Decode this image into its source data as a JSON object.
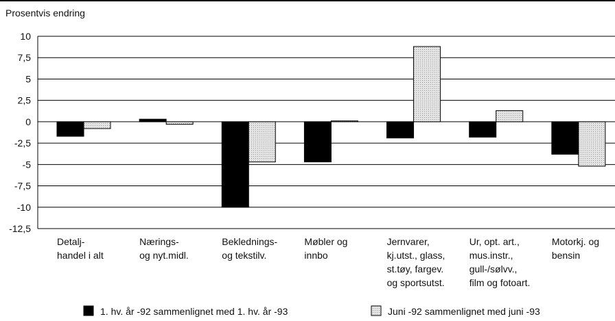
{
  "chart_data": {
    "type": "bar",
    "title": "Prosentvis endring",
    "categories": [
      "Detalj-\nhandel i alt",
      "Nærings-\nog nyt.midl.",
      "Beklednings-\nog tekstilv.",
      "Møbler og\ninnbo",
      "Jernvarer,\nkj.utst., glass,\nst.tøy, fargev.\nog sportsutst.",
      "Ur, opt. art.,\nmus.instr.,\ngull-/sølvv.,\nfilm og fotoart.",
      "Motorkj. og\nbensin"
    ],
    "series": [
      {
        "name": "1. hv. år -92 sammenlignet med 1. hv. år -93",
        "color": "#000000",
        "values": [
          -1.7,
          0.3,
          -10,
          -4.7,
          -1.9,
          -1.8,
          -3.8
        ]
      },
      {
        "name": "Juni -92 sammenlignet med juni -93",
        "color": "#e2e2e2",
        "values": [
          -0.8,
          -0.3,
          -4.7,
          0.1,
          8.8,
          1.3,
          -5.2
        ]
      }
    ],
    "ylim": [
      -12.5,
      10
    ],
    "yticks": [
      {
        "value": -12.5,
        "label": "-12,5"
      },
      -10,
      {
        "value": -7.5,
        "label": "-7,5"
      },
      -5,
      {
        "value": -2.5,
        "label": "-2,5"
      },
      0,
      {
        "value": 2.5,
        "label": "2,5"
      },
      5,
      {
        "value": 7.5,
        "label": "7,5"
      },
      10
    ],
    "grid": true
  }
}
